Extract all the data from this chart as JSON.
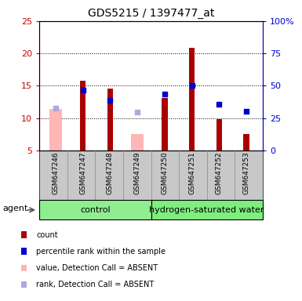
{
  "title": "GDS5215 / 1397477_at",
  "samples": [
    "GSM647246",
    "GSM647247",
    "GSM647248",
    "GSM647249",
    "GSM647250",
    "GSM647251",
    "GSM647252",
    "GSM647253"
  ],
  "red_bars": [
    null,
    15.8,
    14.6,
    null,
    13.1,
    20.9,
    9.9,
    7.5
  ],
  "blue_squares_left": [
    null,
    14.3,
    12.8,
    null,
    13.7,
    15.0,
    12.2,
    11.0
  ],
  "pink_bars": [
    11.4,
    null,
    null,
    7.6,
    null,
    null,
    null,
    null
  ],
  "light_blue_squares_left": [
    11.5,
    null,
    null,
    10.9,
    null,
    null,
    null,
    null
  ],
  "ylim_left": [
    5,
    25
  ],
  "ylim_right": [
    0,
    100
  ],
  "yticks_left": [
    5,
    10,
    15,
    20,
    25
  ],
  "yticks_right": [
    0,
    25,
    50,
    75,
    100
  ],
  "ytick_labels_right": [
    "0",
    "25",
    "50",
    "75",
    "100%"
  ],
  "red_color": "#AA0000",
  "blue_color": "#0000CC",
  "pink_color": "#FFB6B6",
  "lightblue_color": "#AAAADD",
  "left_tick_color": "#CC0000",
  "right_tick_color": "#0000CC",
  "control_label": "control",
  "hsw_label": "hydrogen-saturated water",
  "agent_label": "agent",
  "legend_labels": [
    "count",
    "percentile rank within the sample",
    "value, Detection Call = ABSENT",
    "rank, Detection Call = ABSENT"
  ],
  "legend_colors": [
    "#AA0000",
    "#0000CC",
    "#FFB6B6",
    "#AAAADD"
  ]
}
